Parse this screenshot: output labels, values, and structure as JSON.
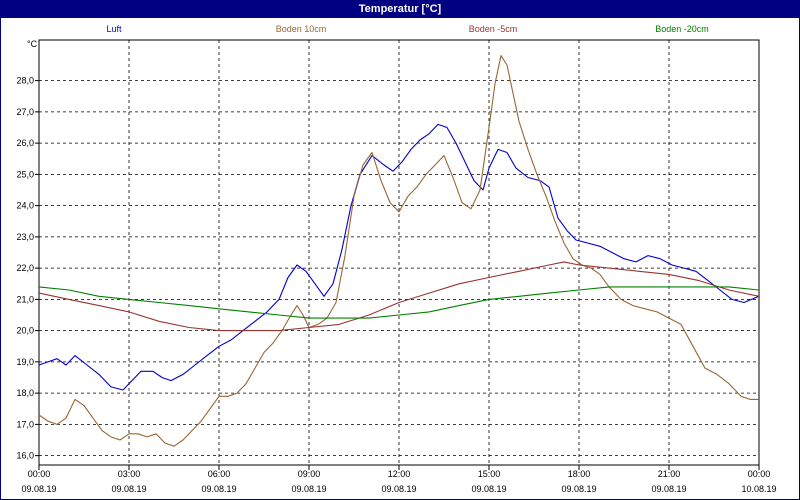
{
  "window": {
    "title": "Temperatur [°C]"
  },
  "chart_data": {
    "type": "line",
    "title": "Temperatur [°C]",
    "ylabel": "°C",
    "ylim": [
      15.7,
      29.3
    ],
    "yticks": [
      "16,0",
      "17,0",
      "18,0",
      "19,0",
      "20,0",
      "21,0",
      "22,0",
      "23,0",
      "24,0",
      "25,0",
      "26,0",
      "27,0",
      "28,0"
    ],
    "xlim": [
      0,
      24
    ],
    "xticks": [
      {
        "time": "00:00",
        "date": "09.08.19"
      },
      {
        "time": "03:00",
        "date": "09.08.19"
      },
      {
        "time": "06:00",
        "date": "09.08.19"
      },
      {
        "time": "09:00",
        "date": "09.08.19"
      },
      {
        "time": "12:00",
        "date": "09.08.19"
      },
      {
        "time": "15:00",
        "date": "09.08.19"
      },
      {
        "time": "18:00",
        "date": "09.08.19"
      },
      {
        "time": "21:00",
        "date": "09.08.19"
      },
      {
        "time": "00:00",
        "date": "10.08.19"
      }
    ],
    "grid": true,
    "legend_position": "top",
    "series": [
      {
        "name": "Luft",
        "color": "#0000cc",
        "x": [
          0,
          0.3,
          0.6,
          0.9,
          1.2,
          1.6,
          2.0,
          2.4,
          2.8,
          3.0,
          3.4,
          3.8,
          4.1,
          4.4,
          4.8,
          5.2,
          5.6,
          6.0,
          6.4,
          6.8,
          7.2,
          7.6,
          8.0,
          8.3,
          8.6,
          8.9,
          9.2,
          9.5,
          9.8,
          10.1,
          10.4,
          10.7,
          11.1,
          11.5,
          11.8,
          12.1,
          12.4,
          12.7,
          13.0,
          13.3,
          13.6,
          13.9,
          14.2,
          14.5,
          14.8,
          15.0,
          15.3,
          15.6,
          15.9,
          16.3,
          16.7,
          17.0,
          17.3,
          17.6,
          17.9,
          18.3,
          18.7,
          19.1,
          19.5,
          19.9,
          20.3,
          20.7,
          21.1,
          21.5,
          21.9,
          22.3,
          22.7,
          23.1,
          23.5,
          24.0
        ],
        "y": [
          18.9,
          19.0,
          19.1,
          18.9,
          19.2,
          18.9,
          18.6,
          18.2,
          18.1,
          18.3,
          18.7,
          18.7,
          18.5,
          18.4,
          18.6,
          18.9,
          19.2,
          19.5,
          19.7,
          20.0,
          20.3,
          20.6,
          21.0,
          21.7,
          22.1,
          21.9,
          21.5,
          21.1,
          21.5,
          22.6,
          24.0,
          25.0,
          25.6,
          25.3,
          25.1,
          25.4,
          25.8,
          26.1,
          26.3,
          26.6,
          26.5,
          26.0,
          25.4,
          24.8,
          24.5,
          25.2,
          25.8,
          25.7,
          25.2,
          24.9,
          24.8,
          24.6,
          23.6,
          23.2,
          22.9,
          22.8,
          22.7,
          22.5,
          22.3,
          22.2,
          22.4,
          22.3,
          22.1,
          22.0,
          21.9,
          21.6,
          21.3,
          21.0,
          20.9,
          21.1
        ]
      },
      {
        "name": "Boden 10cm",
        "color": "#996633",
        "x": [
          0,
          0.3,
          0.6,
          0.9,
          1.2,
          1.5,
          1.8,
          2.1,
          2.4,
          2.7,
          3.0,
          3.3,
          3.6,
          3.9,
          4.2,
          4.5,
          4.8,
          5.1,
          5.4,
          5.7,
          6.0,
          6.3,
          6.6,
          6.9,
          7.2,
          7.5,
          7.8,
          8.1,
          8.4,
          8.6,
          8.8,
          9.0,
          9.3,
          9.6,
          9.9,
          10.2,
          10.5,
          10.8,
          11.1,
          11.4,
          11.7,
          12.0,
          12.3,
          12.6,
          12.9,
          13.2,
          13.5,
          13.8,
          14.1,
          14.4,
          14.7,
          15.0,
          15.2,
          15.4,
          15.6,
          15.8,
          16.0,
          16.3,
          16.6,
          16.9,
          17.2,
          17.5,
          17.8,
          18.1,
          18.4,
          18.7,
          19.0,
          19.4,
          19.8,
          20.2,
          20.6,
          21.0,
          21.4,
          21.8,
          22.2,
          22.6,
          23.0,
          23.4,
          23.7,
          24.0
        ],
        "y": [
          17.3,
          17.1,
          17.0,
          17.2,
          17.8,
          17.6,
          17.2,
          16.8,
          16.6,
          16.5,
          16.7,
          16.7,
          16.6,
          16.7,
          16.4,
          16.3,
          16.5,
          16.8,
          17.1,
          17.5,
          17.9,
          17.9,
          18.0,
          18.3,
          18.8,
          19.3,
          19.6,
          20.0,
          20.5,
          20.8,
          20.5,
          20.1,
          20.2,
          20.4,
          20.9,
          22.4,
          24.3,
          25.3,
          25.7,
          24.8,
          24.1,
          23.8,
          24.3,
          24.6,
          25.0,
          25.3,
          25.6,
          24.9,
          24.1,
          23.9,
          24.5,
          26.5,
          27.9,
          28.8,
          28.5,
          27.6,
          26.7,
          25.8,
          25.0,
          24.3,
          23.5,
          22.8,
          22.3,
          22.1,
          22.0,
          21.8,
          21.4,
          21.0,
          20.8,
          20.7,
          20.6,
          20.4,
          20.2,
          19.5,
          18.8,
          18.6,
          18.3,
          17.9,
          17.8,
          17.8
        ]
      },
      {
        "name": "Boden -5cm",
        "color": "#993333",
        "x": [
          0,
          1,
          2,
          3,
          4,
          5,
          6,
          7,
          8,
          9,
          10,
          11,
          12,
          13,
          14,
          15,
          16,
          17,
          17.5,
          18,
          19,
          20,
          21,
          22,
          23,
          24
        ],
        "y": [
          21.2,
          21.0,
          20.8,
          20.6,
          20.3,
          20.1,
          20.0,
          20.0,
          20.0,
          20.1,
          20.2,
          20.5,
          20.9,
          21.2,
          21.5,
          21.7,
          21.9,
          22.1,
          22.2,
          22.1,
          22.0,
          21.9,
          21.8,
          21.6,
          21.3,
          21.1
        ]
      },
      {
        "name": "Boden -20cm",
        "color": "#008000",
        "x": [
          0,
          1,
          2,
          3,
          4,
          5,
          6,
          7,
          8,
          9,
          10,
          11,
          12,
          13,
          14,
          15,
          16,
          17,
          18,
          19,
          20,
          21,
          22,
          23,
          24
        ],
        "y": [
          21.4,
          21.3,
          21.1,
          21.0,
          20.9,
          20.8,
          20.7,
          20.6,
          20.5,
          20.4,
          20.4,
          20.4,
          20.5,
          20.6,
          20.8,
          21.0,
          21.1,
          21.2,
          21.3,
          21.4,
          21.4,
          21.4,
          21.4,
          21.4,
          21.3
        ]
      }
    ]
  }
}
